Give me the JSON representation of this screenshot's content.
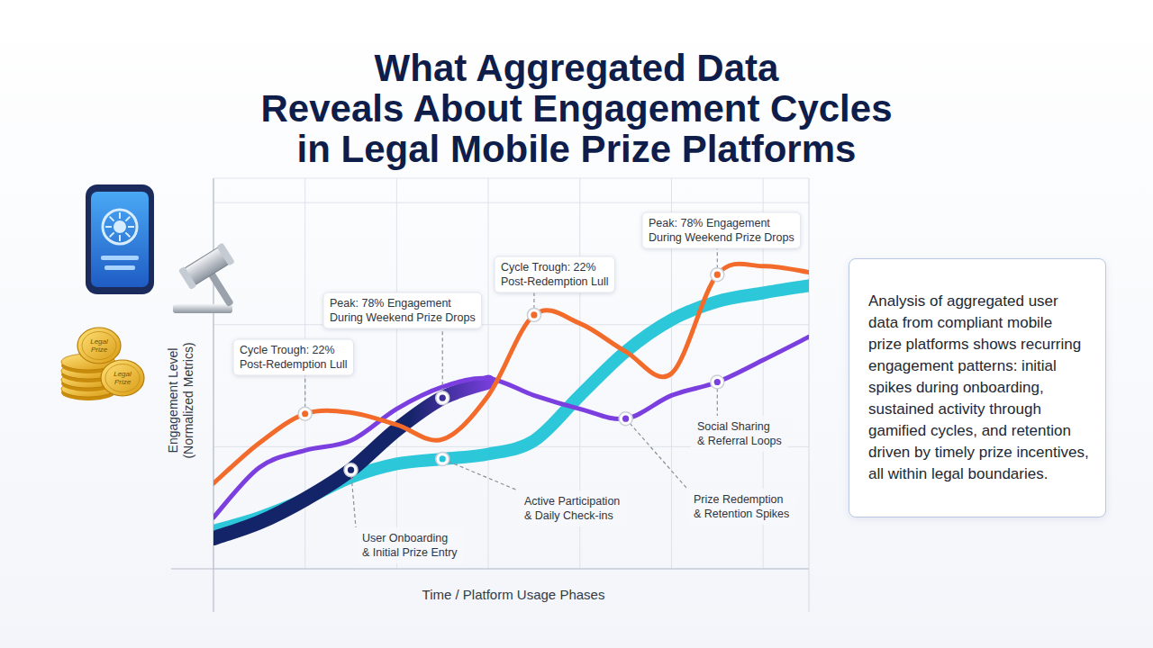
{
  "chart_data": {
    "type": "line",
    "title": "What Aggregated Data\nReveals About Engagement Cycles\nin Legal Mobile Prize Platforms",
    "x_label": "Time / Platform Usage Phases",
    "y_label": "Engagement Level\n(Normalized Metrics)",
    "x": [
      0,
      0.5,
      1,
      1.5,
      2,
      2.5,
      3,
      3.5,
      4,
      4.5,
      5,
      5.5,
      6,
      6.5
    ],
    "series": [
      {
        "color": "#f26b2a",
        "values": [
          0.7,
          1.03,
          1.27,
          1.28,
          1.18,
          1.06,
          1.42,
          2.08,
          2.01,
          1.78,
          1.6,
          2.41,
          2.48,
          2.43
        ]
      },
      {
        "color": "#7b3fe0",
        "values": [
          0.42,
          0.83,
          0.97,
          1.05,
          1.31,
          1.49,
          1.56,
          1.42,
          1.31,
          1.23,
          1.42,
          1.53,
          1.71,
          1.9
        ]
      },
      {
        "color": "#22c4d8",
        "values": [
          0.31,
          0.42,
          0.57,
          0.75,
          0.86,
          0.9,
          0.94,
          1.05,
          1.42,
          1.78,
          2.04,
          2.19,
          2.26,
          2.32
        ]
      },
      {
        "color": "#142468",
        "values": [
          0.25,
          0.38,
          0.57,
          0.81,
          1.14,
          1.4,
          1.53,
          null,
          null,
          null,
          null,
          null,
          null,
          null
        ]
      }
    ],
    "xlim": [
      0,
      6.5
    ],
    "ylim": [
      0,
      3.2
    ],
    "xticks": [
      0,
      1,
      2,
      3,
      4,
      5,
      6
    ],
    "yticks": [
      0,
      1,
      2,
      3
    ],
    "grid": true,
    "tick_labels": false,
    "marker": "circle",
    "annotations": [
      "Cycle Trough: 22%\nPost-Redemption Lull",
      "Peak: 78% Engagement\nDuring Weekend Prize Drops",
      "Cycle Trough: 22%\nPost-Redemption Lull",
      "Peak: 78% Engagement\nDuring Weekend Prize Drops",
      "Social Sharing\n& Referral Loops",
      "Prize Redemption\n& Retention Spikes",
      "Active Participation\n& Daily Check-ins",
      "User Onboarding\n& Initial Prize Entry"
    ],
    "text_box": "Analysis of aggregated user data from compliant mobile prize platforms shows recurring engagement patterns: initial spikes during onboarding, sustained activity through gamified cycles, and retention driven by timely prize incentives, all within legal boundaries."
  },
  "icon_labels": [
    "Legal\nPrize",
    "Legal\nPrize"
  ]
}
